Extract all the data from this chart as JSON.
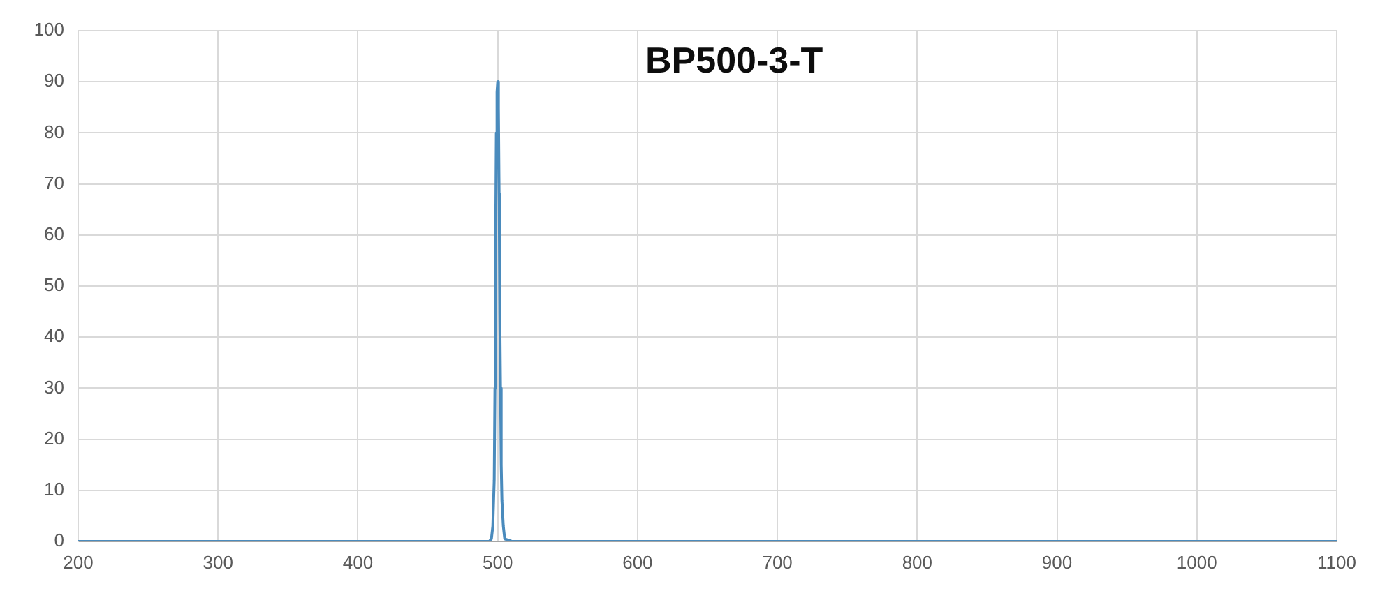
{
  "chart_data": {
    "type": "line",
    "title": "BP500-3-T",
    "series": [
      {
        "color": "#4a8bbd",
        "x": [
          200,
          300,
          400,
          490,
          494,
          495.5,
          496.5,
          497.5,
          498,
          498.5,
          499,
          499.5,
          500,
          500.5,
          501,
          501.5,
          502,
          502.5,
          503,
          504,
          505,
          510,
          600,
          700,
          800,
          900,
          1000,
          1100
        ],
        "values": [
          0,
          0,
          0,
          0,
          0,
          0.5,
          3,
          12,
          30,
          58,
          80,
          88,
          90,
          85,
          68,
          45,
          30,
          15,
          8,
          3,
          0.5,
          0,
          0,
          0,
          0,
          0,
          0,
          0
        ]
      }
    ],
    "xlim": [
      200,
      1100
    ],
    "xticks": [
      200,
      300,
      400,
      500,
      600,
      700,
      800,
      900,
      1000,
      1100
    ],
    "ylim": [
      0,
      100
    ],
    "yticks": [
      0,
      10,
      20,
      30,
      40,
      50,
      60,
      70,
      80,
      90,
      100
    ],
    "grid": true,
    "legend": false,
    "marker": "none",
    "line_style": "solid"
  }
}
